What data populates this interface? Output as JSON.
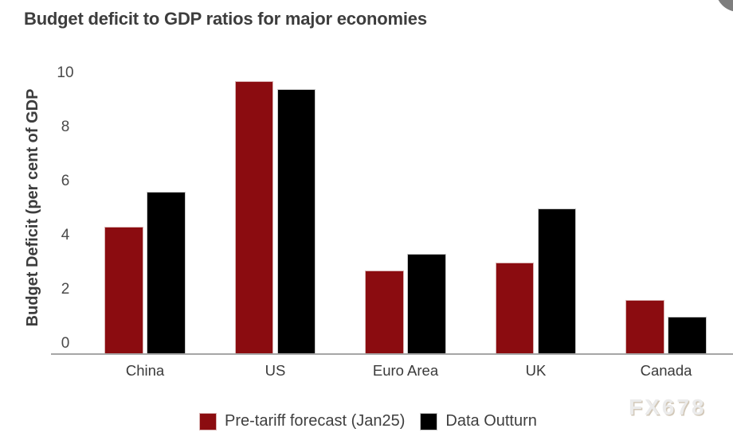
{
  "title": "Budget deficit to GDP ratios for major economies",
  "watermark": "FX678",
  "colors": {
    "series_pre_tariff": "#8b0c10",
    "series_outturn": "#000000",
    "axis_line": "#a6a6a6",
    "title_text": "#3d3d3d",
    "tick_text": "#4a4a4a",
    "corner_circle": "#7e7e7e"
  },
  "chart_data": {
    "type": "bar",
    "title": "Budget deficit to GDP ratios for major economies",
    "xlabel": "",
    "ylabel": "Budget Deficit (per cent of GDP",
    "categories": [
      "China",
      "US",
      "Euro Area",
      "UK",
      "Canada"
    ],
    "series": [
      {
        "name": "Pre-tariff forecast (Jan25)",
        "color": "#8b0c10",
        "values": [
          4.3,
          9.7,
          2.7,
          3.0,
          1.6
        ]
      },
      {
        "name": "Data Outturn",
        "color": "#000000",
        "values": [
          5.6,
          9.4,
          3.3,
          5.0,
          1.0
        ]
      }
    ],
    "ylim": [
      0,
      10
    ],
    "yticks": [
      0,
      2,
      4,
      6,
      8,
      10
    ],
    "grid": false,
    "legend_position": "bottom"
  }
}
